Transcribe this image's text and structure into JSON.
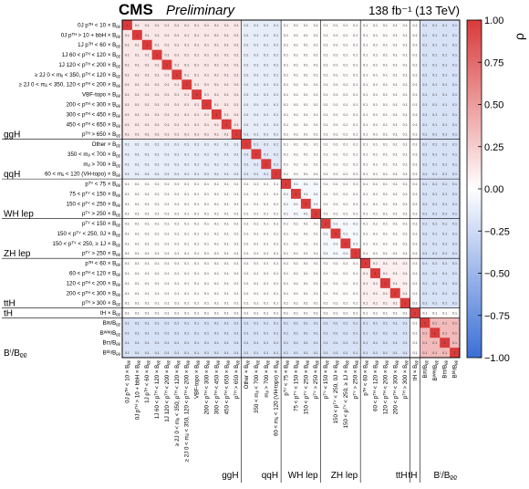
{
  "header": {
    "experiment": "CMS",
    "status": "Preliminary",
    "lumi": "138 fb⁻¹ (13 TeV)"
  },
  "chart_data": {
    "type": "heatmap",
    "title": "",
    "colorbar": {
      "label": "ρ",
      "min": -1.0,
      "max": 1.0,
      "ticks": [
        "1.00",
        "0.75",
        "0.50",
        "0.25",
        "0.00",
        "−0.25",
        "−0.50",
        "−0.75",
        "−1.00"
      ],
      "colors": {
        "low": "#3b6fd6",
        "mid": "#ffffff",
        "high": "#d93a3a"
      }
    },
    "labels": [
      "0J pᵀᴴ < 10 × Bᵨᵨ",
      "0J pᵀᴴ > 10 + bbH × Bᵨᵨ",
      "1J pᵀᴴ < 60 × Bᵨᵨ",
      "1J 60 < pᵀᴴ < 120 × Bᵨᵨ",
      "1J 120 < pᵀᴴ < 200 × Bᵨᵨ",
      "≥ 2J 0 < mⱼⱼ < 350, pᵀᴴ < 120 × Bᵨᵨ",
      "≥ 2J 0 < mⱼⱼ < 350, 120 < pᵀᴴ < 200 × Bᵨᵨ",
      "VBF-topo × Bᵨᵨ",
      "200 < pᵀᴴ < 300 × Bᵨᵨ",
      "300 < pᵀᴴ < 450 × Bᵨᵨ",
      "450 < pᵀᴴ < 650 × Bᵨᵨ",
      "pᵀᴴ > 650 × Bᵨᵨ",
      "Other × Bᵨᵨ",
      "350 < mⱼⱼ < 700 × Bᵨᵨ",
      "mⱼⱼ > 700 × Bᵨᵨ",
      "60 < mⱼⱼ < 120 (VH-topo) × Bᵨᵨ",
      "pᵀⱽ < 75 × Bᵨᵨ",
      "75 < pᵀⱽ < 150 × Bᵨᵨ",
      "150 < pᵀⱽ < 250 × Bᵨᵨ",
      "pᵀⱽ > 250 × Bᵨᵨ",
      "pᵀⱽ < 150 × Bᵨᵨ",
      "150 < pᵀⱽ < 250, 0J × Bᵨᵨ",
      "150 < pᵀⱽ < 250, ≥ 1J × Bᵨᵨ",
      "pᵀⱽ > 250 × Bᵨᵨ",
      "pᵀᴴ < 60 × Bᵨᵨ",
      "60 < pᵀᴴ < 120 × Bᵨᵨ",
      "120 < pᵀᴴ < 200 × Bᵨᵨ",
      "200 < pᵀᴴ < 300 × Bᵨᵨ",
      "pᵀᴴ > 300 × Bᵨᵨ",
      "tH × Bᵨᵨ",
      "Bᵍᵍ/Bᵨᵨ",
      "Bᵂᵂ/Bᵨᵨ",
      "Bττ/Bᵨᵨ",
      "Bᵇᵇ/Bᵨᵨ"
    ],
    "groups": [
      {
        "name": "ggH",
        "start": 0,
        "end": 11
      },
      {
        "name": "qqH",
        "start": 12,
        "end": 15
      },
      {
        "name": "WH lep",
        "start": 16,
        "end": 19
      },
      {
        "name": "ZH lep",
        "start": 20,
        "end": 23
      },
      {
        "name": "ttH",
        "start": 24,
        "end": 28
      },
      {
        "name": "tH",
        "start": 29,
        "end": 29
      },
      {
        "name": "Bⁱ/Bᵨᵨ",
        "start": 30,
        "end": 33
      }
    ],
    "blocks": [
      {
        "rows": [
          0,
          11
        ],
        "cols": [
          0,
          11
        ],
        "value": 0.12
      },
      {
        "rows": [
          12,
          15
        ],
        "cols": [
          12,
          15
        ],
        "value": -0.15
      },
      {
        "rows": [
          16,
          19
        ],
        "cols": [
          16,
          19
        ],
        "value": -0.05
      },
      {
        "rows": [
          20,
          23
        ],
        "cols": [
          20,
          23
        ],
        "value": -0.05
      },
      {
        "rows": [
          24,
          28
        ],
        "cols": [
          24,
          28
        ],
        "value": 0.08
      },
      {
        "rows": [
          0,
          11
        ],
        "cols": [
          12,
          15
        ],
        "value": -0.12
      },
      {
        "rows": [
          0,
          28
        ],
        "cols": [
          30,
          33
        ],
        "value": -0.2
      },
      {
        "rows": [
          30,
          33
        ],
        "cols": [
          0,
          28
        ],
        "value": -0.2
      },
      {
        "rows": [
          30,
          33
        ],
        "cols": [
          30,
          33
        ],
        "value": 0.35
      }
    ],
    "diagonal": 1.0,
    "cell_text": "0.1",
    "grid": true
  }
}
